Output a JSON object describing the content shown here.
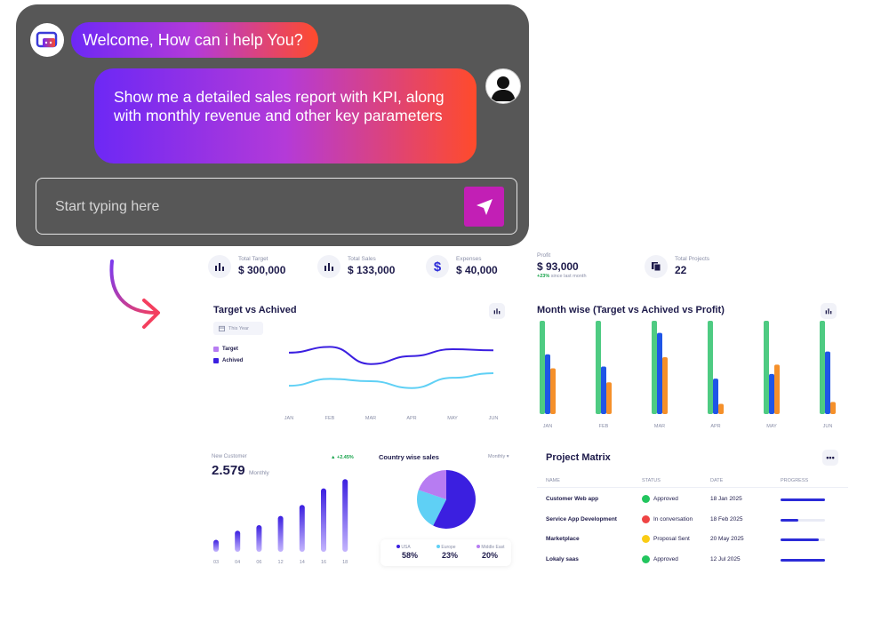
{
  "chat": {
    "welcome": "Welcome, How can i help You?",
    "request": "Show me a detailed sales report with KPI, along with monthly revenue and other key parameters",
    "input_placeholder": "Start typing here",
    "bot_icon": "bot-icon",
    "user_icon": "user-silhouette-icon",
    "send_icon": "send-arrow-icon"
  },
  "kpis": [
    {
      "label": "Total Target",
      "value": "$ 300,000",
      "icon": "bar-chart-icon"
    },
    {
      "label": "Total Sales",
      "value": "$ 133,000",
      "icon": "bar-chart-icon"
    },
    {
      "label": "Expenses",
      "value": "$ 40,000",
      "icon": "dollar-icon"
    },
    {
      "label": "Profit",
      "value": "$ 93,000",
      "delta": "+23%",
      "delta_note": "since last month"
    },
    {
      "label": "Total Projects",
      "value": "22",
      "icon": "documents-icon"
    }
  ],
  "target_card": {
    "title": "Target vs Achived",
    "filter": "This Year",
    "legend": [
      "Target",
      "Achived"
    ],
    "months": [
      "JAN",
      "FEB",
      "MAR",
      "APR",
      "MAY",
      "JUN"
    ]
  },
  "month_card": {
    "title": "Month wise (Target vs Achived vs Profit)",
    "months": [
      "JAN",
      "FEB",
      "MAR",
      "APR",
      "MAY",
      "JUN"
    ]
  },
  "customer_card": {
    "label": "New Customer",
    "value": "2.579",
    "unit": "Monthly",
    "delta": "+2.45%",
    "ticks": [
      "03",
      "04",
      "06",
      "12",
      "14",
      "16",
      "18"
    ]
  },
  "country_card": {
    "title": "Country wise sales",
    "filter": "Monthly",
    "legend": [
      {
        "name": "USA",
        "value": "58%",
        "color": "#3b1fe0"
      },
      {
        "name": "Europe",
        "value": "23%",
        "color": "#5fd0f5"
      },
      {
        "name": "Middle East",
        "value": "20%",
        "color": "#b77cf2"
      }
    ]
  },
  "project_matrix": {
    "title": "Project Matrix",
    "headers": [
      "NAME",
      "STATUS",
      "DATE",
      "PROGRESS"
    ],
    "rows": [
      {
        "name": "Customer Web app",
        "status": "Approved",
        "date": "18 Jan 2025",
        "status_color": "#22c55e",
        "progress": 1.0
      },
      {
        "name": "Service App Development",
        "status": "In conversation",
        "date": "18 Feb 2025",
        "status_color": "#ef4444",
        "progress": 0.4
      },
      {
        "name": "Marketplace",
        "status": "Proposal Sent",
        "date": "20 May 2025",
        "status_color": "#facc15",
        "progress": 0.85
      },
      {
        "name": "Lokaly saas",
        "status": "Approved",
        "date": "12 Jul 2025",
        "status_color": "#22c55e",
        "progress": 1.0
      }
    ]
  },
  "chart_data": [
    {
      "type": "line",
      "categories": [
        "JAN",
        "FEB",
        "MAR",
        "APR",
        "MAY",
        "JUN"
      ],
      "series": [
        {
          "name": "Target",
          "values": [
            5.3,
            5.8,
            4.3,
            5.0,
            5.6,
            5.5
          ]
        },
        {
          "name": "Achived",
          "values": [
            2.4,
            3.0,
            2.8,
            2.2,
            3.1,
            3.5
          ]
        }
      ],
      "ylim": [
        0,
        7
      ],
      "title": "Target vs Achived"
    },
    {
      "type": "bar",
      "categories": [
        "JAN",
        "FEB",
        "MAR",
        "APR",
        "MAY",
        "JUN"
      ],
      "series": [
        {
          "values": [
            100,
            100,
            100,
            100,
            100,
            100
          ],
          "color": "#4ecb82"
        },
        {
          "values": [
            64,
            51,
            87,
            38,
            43,
            67
          ],
          "color": "#1f55e6"
        },
        {
          "values": [
            49,
            34,
            61,
            11,
            53,
            13
          ],
          "color": "#f5902a"
        }
      ],
      "ylim": [
        0,
        100
      ],
      "title": "Month wise (Target vs Achived vs Profit)"
    },
    {
      "type": "bar",
      "categories": [
        "03",
        "04",
        "06",
        "12",
        "14",
        "16",
        "18"
      ],
      "values": [
        13,
        23,
        29,
        39,
        51,
        69,
        79
      ],
      "ylim": [
        0,
        85
      ]
    },
    {
      "type": "pie",
      "categories": [
        "USA",
        "Europe",
        "Middle East"
      ],
      "values": [
        58,
        23,
        20
      ],
      "title": "Country wise sales"
    }
  ]
}
